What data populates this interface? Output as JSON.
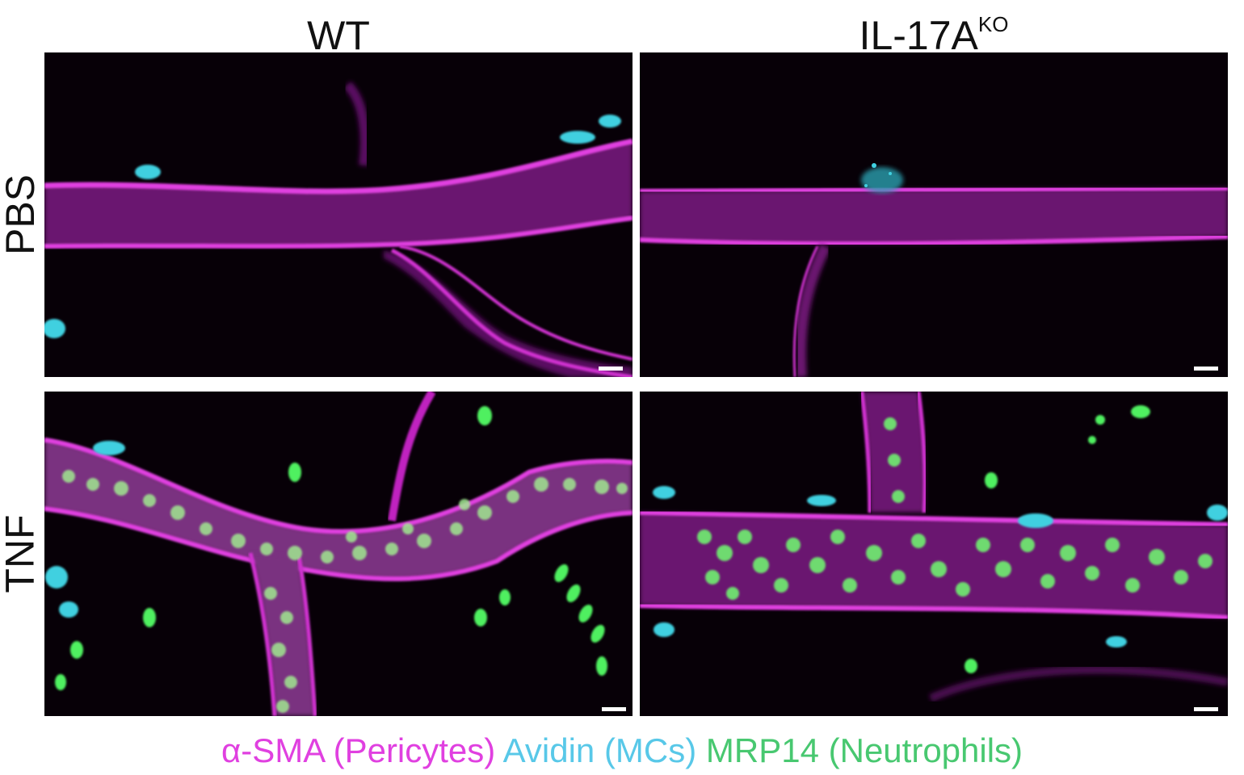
{
  "figure": {
    "columns": [
      {
        "label": "WT",
        "superscript": ""
      },
      {
        "label": "IL-17A",
        "superscript": "KO"
      }
    ],
    "rows": [
      "PBS",
      "TNF"
    ],
    "legend": [
      {
        "text": "α-SMA (Pericytes)",
        "color": "#e040e0"
      },
      {
        "text": "Avidin (MCs)",
        "color": "#58c8e8"
      },
      {
        "text": "MRP14 (Neutrophils)",
        "color": "#48c870"
      }
    ],
    "stain_colors": {
      "pericytes": "#d030d0",
      "mast_cells": "#40d0e0",
      "neutrophils": "#50f060",
      "background": "#070007"
    }
  }
}
